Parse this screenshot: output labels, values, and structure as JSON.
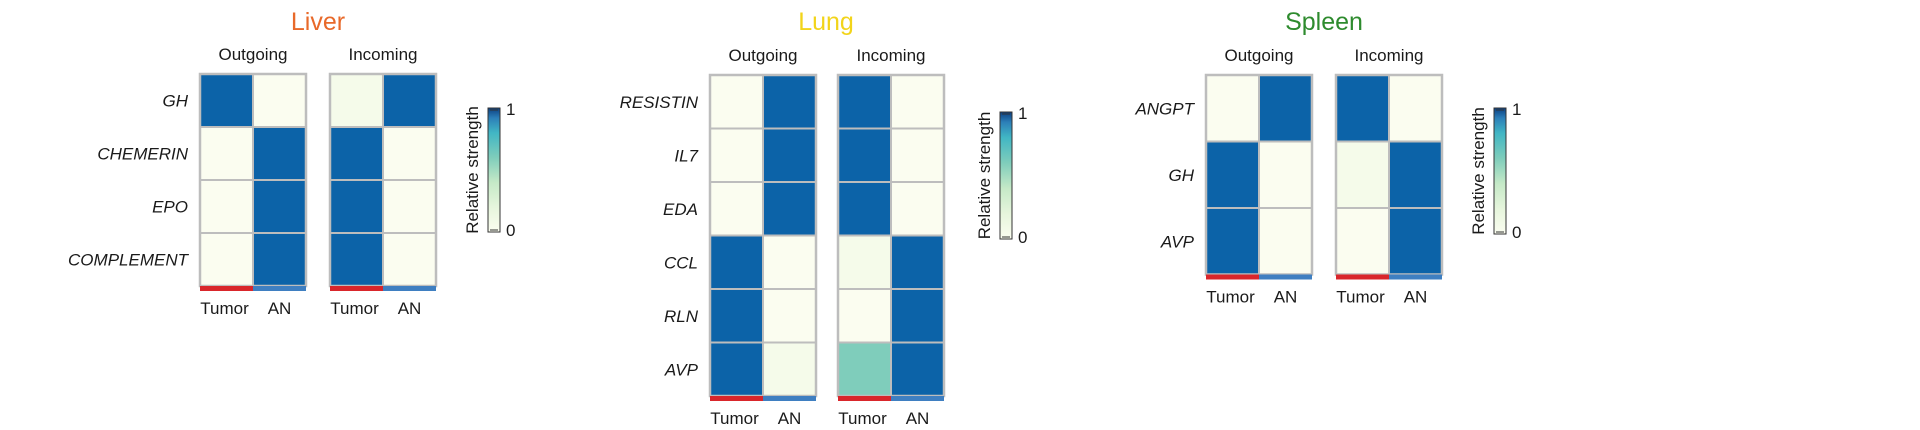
{
  "chart_data": [
    {
      "type": "heatmap",
      "title": "Liver",
      "title_color": "#E8692A",
      "rows": [
        "GH",
        "CHEMERIN",
        "EPO",
        "COMPLEMENT"
      ],
      "columns": [
        "Tumor",
        "AN"
      ],
      "panels": [
        {
          "label": "Outgoing",
          "values": [
            [
              1,
              0
            ],
            [
              0,
              1
            ],
            [
              0,
              1
            ],
            [
              0,
              1
            ]
          ]
        },
        {
          "label": "Incoming",
          "values": [
            [
              0.05,
              1
            ],
            [
              1,
              0
            ],
            [
              1,
              0
            ],
            [
              1,
              0
            ]
          ]
        }
      ],
      "legend": {
        "label": "Relative strength",
        "min": 0,
        "max": 1,
        "min_label": "0",
        "max_label": "1"
      }
    },
    {
      "type": "heatmap",
      "title": "Lung",
      "title_color": "#F2D41A",
      "rows": [
        "RESISTIN",
        "IL7",
        "EDA",
        "CCL",
        "RLN",
        "AVP"
      ],
      "columns": [
        "Tumor",
        "AN"
      ],
      "panels": [
        {
          "label": "Outgoing",
          "values": [
            [
              0,
              1
            ],
            [
              0,
              1
            ],
            [
              0,
              1
            ],
            [
              1,
              0
            ],
            [
              1,
              0
            ],
            [
              1,
              0.05
            ]
          ]
        },
        {
          "label": "Incoming",
          "values": [
            [
              1,
              0
            ],
            [
              1,
              0
            ],
            [
              1,
              0
            ],
            [
              0.05,
              1
            ],
            [
              0,
              1
            ],
            [
              0.5,
              1
            ]
          ]
        }
      ],
      "legend": {
        "label": "Relative strength",
        "min": 0,
        "max": 1,
        "min_label": "0",
        "max_label": "1"
      }
    },
    {
      "type": "heatmap",
      "title": "Spleen",
      "title_color": "#2E8B2E",
      "rows": [
        "ANGPT",
        "GH",
        "AVP"
      ],
      "columns": [
        "Tumor",
        "AN"
      ],
      "panels": [
        {
          "label": "Outgoing",
          "values": [
            [
              0,
              1
            ],
            [
              1,
              0
            ],
            [
              1,
              0
            ]
          ]
        },
        {
          "label": "Incoming",
          "values": [
            [
              1,
              0
            ],
            [
              0.05,
              1
            ],
            [
              0,
              1
            ]
          ]
        }
      ],
      "legend": {
        "label": "Relative strength",
        "min": 0,
        "max": 1,
        "min_label": "0",
        "max_label": "1"
      }
    }
  ],
  "colors": {
    "tumor_bar": "#D9262B",
    "an_bar": "#3F7FC1",
    "cell_border": "#BDBDBD",
    "scale": [
      "#FBFDF0",
      "#E6F5DC",
      "#C5E9C7",
      "#7FCDBB",
      "#41B6C4",
      "#2C7FB8",
      "#0C63A8"
    ]
  }
}
